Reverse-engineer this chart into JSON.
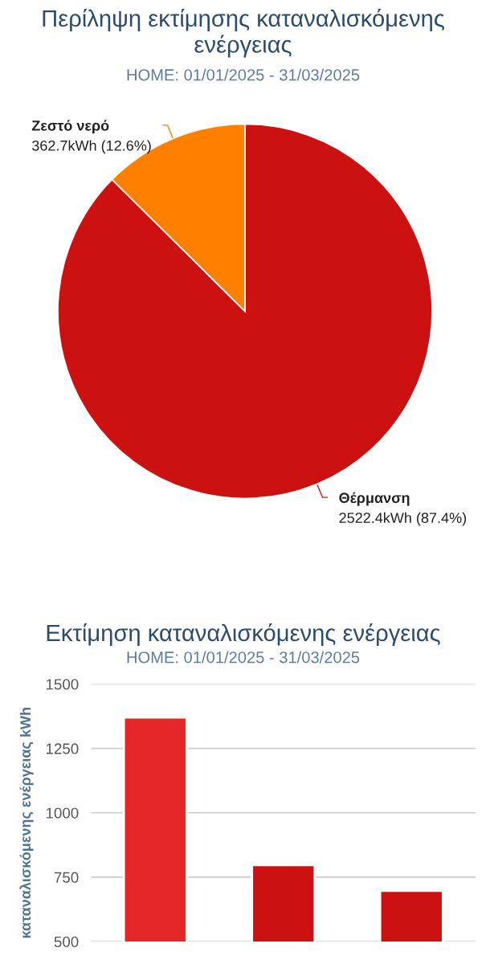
{
  "chart_data": [
    {
      "type": "pie",
      "title": "Περίληψη εκτίμησης καταναλισκόμενης ενέργειας",
      "subtitle": "HOME: 01/01/2025 - 31/03/2025",
      "categories": [
        "Θέρμανση",
        "Ζεστό νερό"
      ],
      "values": [
        2522.4,
        362.7
      ],
      "colors": [
        "#cc1111",
        "#ff8000"
      ],
      "value_labels": [
        "2522.4kWh (87.4%)",
        "362.7kWh (12.6%)"
      ]
    },
    {
      "type": "bar",
      "title": "Εκτίμηση καταναλισκόμενης ενέργειας",
      "subtitle": "HOME: 01/01/2025 - 31/03/2025",
      "ylabel": "καταναλισκόμενης ενέργειας kWh",
      "categories": [
        null,
        null,
        null
      ],
      "values": [
        1370,
        797,
        697
      ],
      "colors": [
        "#e32727",
        "#cc1111",
        "#cc1111"
      ],
      "ylim": [
        500,
        1500
      ],
      "yticks": [
        500,
        750,
        1000,
        1250,
        1500
      ],
      "grid": "y",
      "tick_labels": "y"
    }
  ]
}
